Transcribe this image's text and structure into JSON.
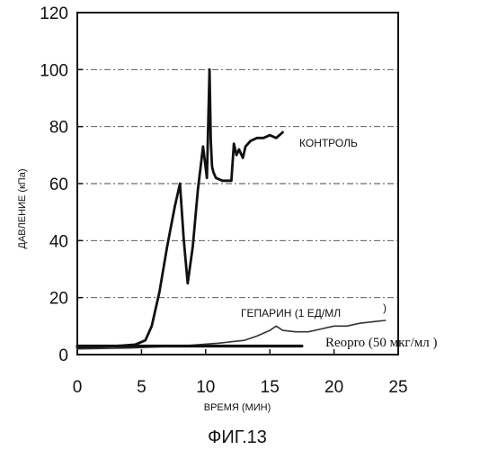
{
  "chart_data": {
    "type": "line",
    "figure_caption": "ФИГ.13",
    "xlabel": "ВРЕМЯ (МИН)",
    "ylabel": "ДАВЛЕНИЕ (кПа)",
    "xlim": [
      0,
      25
    ],
    "ylim": [
      0,
      120
    ],
    "x_ticks": [
      "0",
      "5",
      "10",
      "15",
      "20",
      "25"
    ],
    "y_ticks": [
      "0",
      "20",
      "40",
      "60",
      "80",
      "100",
      "120"
    ],
    "grid": {
      "horizontal": "dash-dot",
      "vertical": false
    },
    "series": [
      {
        "name": "КОНТРОЛЬ",
        "color": "#111111",
        "x": [
          0,
          3,
          4.5,
          5.3,
          5.8,
          6.4,
          7.0,
          7.6,
          8.0,
          8.3,
          8.6,
          9.0,
          9.4,
          9.8,
          10.1,
          10.3,
          10.4,
          10.5,
          10.6,
          10.8,
          11.3,
          12.0,
          12.2,
          12.4,
          12.6,
          12.9,
          13.1,
          13.5,
          14.0,
          14.5,
          15.0,
          15.5,
          16.0
        ],
        "y": [
          2.5,
          3,
          3.5,
          5,
          10,
          22,
          38,
          52,
          60,
          40,
          25,
          38,
          58,
          73,
          62,
          100,
          75,
          66,
          64,
          62,
          61,
          61,
          74,
          70,
          72,
          69,
          73,
          75,
          76,
          76,
          77,
          76,
          78
        ]
      },
      {
        "name": "ГЕПАРИН",
        "color": "#333333",
        "x": [
          0,
          4,
          8,
          11,
          13,
          14,
          15,
          15.5,
          16,
          17,
          18,
          19,
          20,
          21,
          22,
          23,
          24
        ],
        "y": [
          2,
          2.3,
          3,
          4,
          5,
          6.5,
          8.5,
          10,
          8.5,
          8,
          8,
          9,
          10,
          10,
          11,
          11.5,
          12
        ]
      },
      {
        "name": "Reopro",
        "color": "#111111",
        "x": [
          0,
          17.5
        ],
        "y": [
          3,
          3
        ]
      }
    ],
    "labels": [
      {
        "text": "КОНТРОЛЬ",
        "class": "series-label"
      },
      {
        "text": "ГЕПАРИН (1 ЕД/МЛ",
        "class": "series-label"
      },
      {
        "text": ")",
        "class": "series-label"
      },
      {
        "text": "Reopro (50 мкг/мл )",
        "class": "series-label-serif"
      }
    ]
  }
}
